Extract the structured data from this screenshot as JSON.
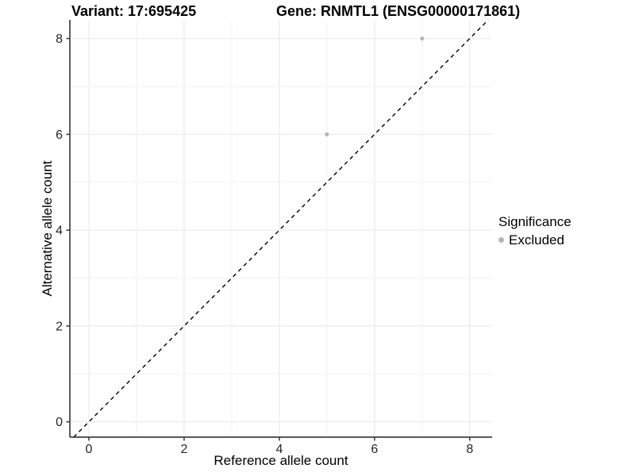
{
  "chart_data": {
    "type": "scatter",
    "titles": {
      "left": "Variant: 17:695425",
      "right": "Gene: RNMTL1 (ENSG00000171861)"
    },
    "xlabel": "Reference allele count",
    "ylabel": "Alternative allele count",
    "xlim": [
      -0.4,
      8.47
    ],
    "ylim": [
      -0.32,
      8.39
    ],
    "x_ticks": [
      0,
      2,
      4,
      6,
      8
    ],
    "y_ticks": [
      0,
      2,
      4,
      6,
      8
    ],
    "x_minor": [
      1,
      3,
      5,
      7
    ],
    "y_minor": [
      1,
      3,
      5,
      7
    ],
    "grid": true,
    "series": [
      {
        "name": "Excluded",
        "marker": "circle",
        "color": "#b5b5b5",
        "size": 2.6,
        "points": [
          [
            5,
            6
          ],
          [
            7,
            8
          ]
        ]
      }
    ],
    "reference_line": {
      "kind": "identity y=x",
      "style": "dashed",
      "color": "#000000"
    },
    "legend": {
      "title": "Significance",
      "position": "right",
      "entries": [
        {
          "label": "Excluded",
          "color": "#b5b5b5"
        }
      ]
    },
    "colors": {
      "background": "#ffffff",
      "grid_major": "#ebebeb",
      "grid_minor": "#f2f2f2",
      "axis_line": "#404040",
      "tick_text": "#262626",
      "label_text": "#000000"
    }
  }
}
